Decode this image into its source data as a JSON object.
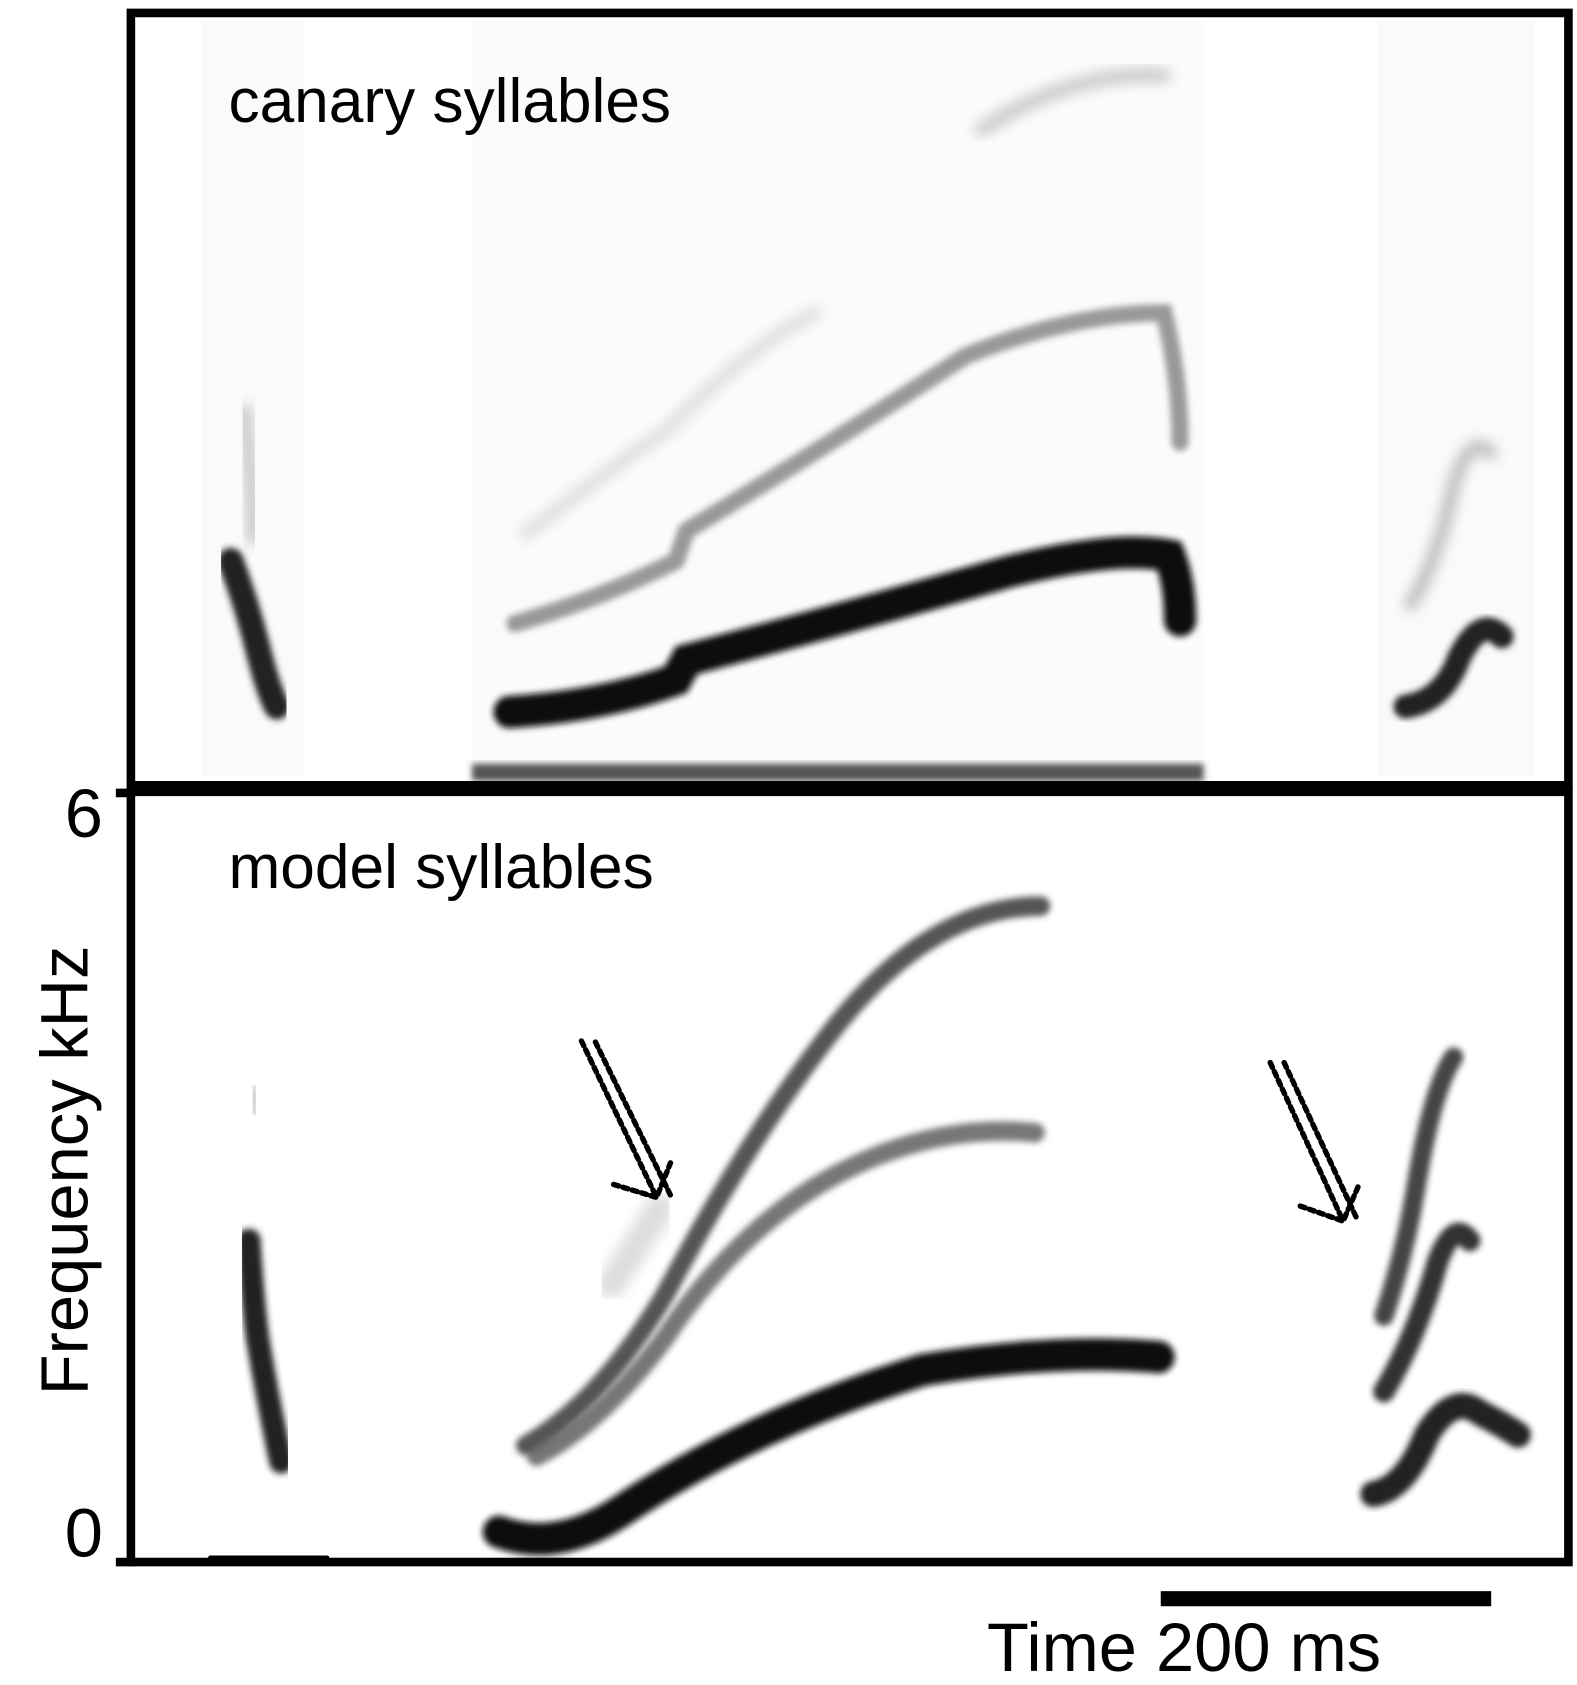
{
  "figure": {
    "panels": [
      {
        "label": "canary syllables"
      },
      {
        "label": "model syllables"
      }
    ],
    "y_label": "Frequency kHz",
    "ylim": [
      0,
      6
    ],
    "yticks": [
      0,
      6
    ],
    "x_label": "Time 200 ms"
  }
}
